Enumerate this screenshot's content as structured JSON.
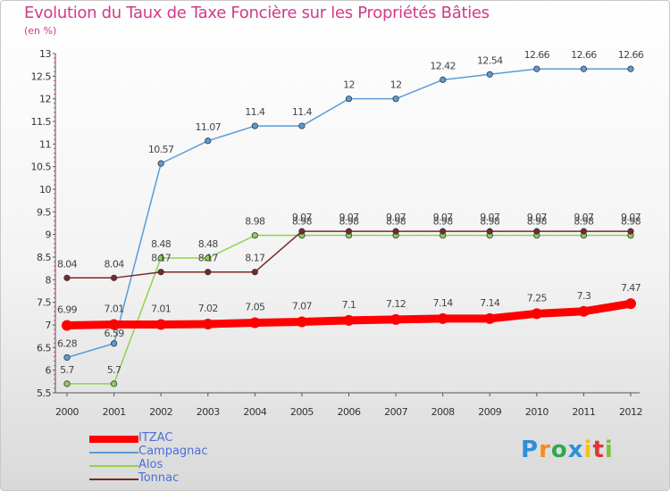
{
  "chart_data": {
    "type": "line",
    "title": "Evolution du Taux de Taxe Foncière sur les Propriétés Bâties",
    "subtitle": "(en %)",
    "x": [
      "2000",
      "2001",
      "2002",
      "2003",
      "2004",
      "2005",
      "2006",
      "2007",
      "2008",
      "2009",
      "2010",
      "2011",
      "2012"
    ],
    "ylim": [
      5.5,
      13
    ],
    "yticks": [
      "5.5",
      "6",
      "6.5",
      "7",
      "7.5",
      "8",
      "8.5",
      "9",
      "9.5",
      "10",
      "10.5",
      "11",
      "11.5",
      "12",
      "12.5",
      "13"
    ],
    "series": [
      {
        "name": "ITZAC",
        "color": "#ff0000",
        "values": [
          6.99,
          7.01,
          7.01,
          7.02,
          7.05,
          7.07,
          7.1,
          7.12,
          7.14,
          7.14,
          7.25,
          7.3,
          7.47
        ],
        "labels": [
          "6.99",
          "7.01",
          "7.01",
          "7.02",
          "7.05",
          "7.07",
          "7.1",
          "7.12",
          "7.14",
          "7.14",
          "7.25",
          "7.3",
          "7.47"
        ]
      },
      {
        "name": "Campagnac",
        "color": "#5b9bd5",
        "values": [
          6.28,
          6.59,
          10.57,
          11.07,
          11.4,
          11.4,
          12,
          12,
          12.42,
          12.54,
          12.66,
          12.66,
          12.66
        ],
        "labels": [
          "6.28",
          "6.59",
          "10.57",
          "11.07",
          "11.4",
          "11.4",
          "12",
          "12",
          "12.42",
          "12.54",
          "12.66",
          "12.66",
          "12.66"
        ]
      },
      {
        "name": "Alos",
        "color": "#8fd14f",
        "values": [
          5.7,
          5.7,
          8.48,
          8.48,
          8.98,
          8.98,
          8.98,
          8.98,
          8.98,
          8.98,
          8.98,
          8.98,
          8.98
        ],
        "labels": [
          "5.7",
          "5.7",
          "8.48",
          "8.48",
          "8.98",
          "8.98",
          "8.98",
          "8.98",
          "8.98",
          "8.98",
          "8.98",
          "8.98",
          "8.98"
        ]
      },
      {
        "name": "Tonnac",
        "color": "#7a2828",
        "values": [
          8.04,
          8.04,
          8.17,
          8.17,
          8.17,
          9.07,
          9.07,
          9.07,
          9.07,
          9.07,
          9.07,
          9.07,
          9.07
        ],
        "labels": [
          "8.04",
          "8.04",
          "8.17",
          "8.17",
          "8.17",
          "9.07",
          "9.07",
          "9.07",
          "9.07",
          "9.07",
          "9.07",
          "9.07",
          "9.07"
        ]
      }
    ],
    "legend": "bottom-left",
    "grid": false
  },
  "logo": {
    "letters": [
      "P",
      "r",
      "o",
      "x",
      "i",
      "t",
      "i"
    ],
    "colors": [
      "#2f8fd8",
      "#f28c1c",
      "#2fa84f",
      "#2f8fd8",
      "#f2c21c",
      "#d83a3a",
      "#7bc043"
    ]
  }
}
